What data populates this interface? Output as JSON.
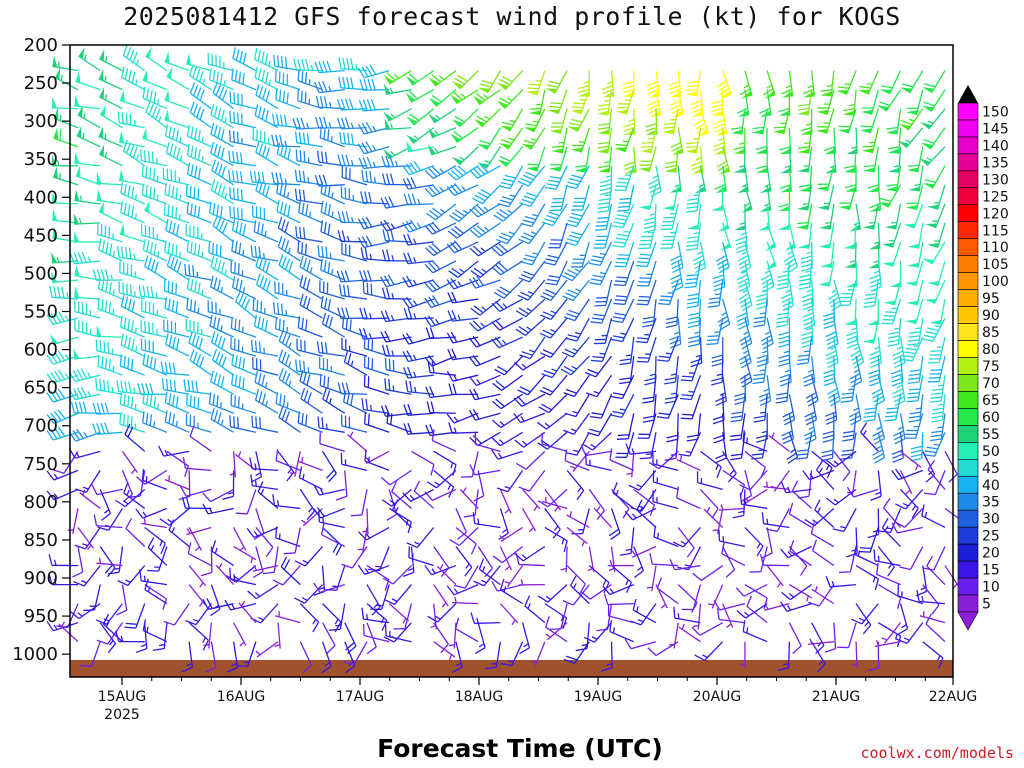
{
  "title": "2025081412 GFS forecast wind profile (kt) for KOGS",
  "xlabel": "Forecast Time (UTC)",
  "credit": "coolwx.com/models",
  "chart_data": {
    "type": "wind-barb-profile",
    "y_axis": {
      "levels": [
        200,
        250,
        300,
        350,
        400,
        450,
        500,
        550,
        600,
        650,
        700,
        750,
        800,
        850,
        900,
        950,
        1000
      ],
      "range": [
        200,
        1030
      ]
    },
    "x_axis": {
      "ticks": [
        "15AUG",
        "16AUG",
        "17AUG",
        "18AUG",
        "19AUG",
        "20AUG",
        "21AUG",
        "22AUG"
      ],
      "sublabel": "2025"
    },
    "colorbar": {
      "values": [
        5,
        10,
        15,
        20,
        25,
        30,
        35,
        40,
        45,
        50,
        55,
        60,
        65,
        70,
        75,
        80,
        85,
        90,
        95,
        100,
        105,
        110,
        115,
        120,
        125,
        130,
        135,
        140,
        145,
        150
      ],
      "colors": [
        "#8c1fd9",
        "#6a1ff0",
        "#3a14e8",
        "#1e1ed8",
        "#1e3ad8",
        "#1f5fe0",
        "#1f8ae8",
        "#15b4f0",
        "#22ddd2",
        "#22f0b4",
        "#1fd27a",
        "#22e84a",
        "#40e81a",
        "#7ce81a",
        "#b4f00f",
        "#ffff00",
        "#ffe41a",
        "#ffc800",
        "#ffad00",
        "#ff9600",
        "#ff7d00",
        "#ff5a00",
        "#ff2a00",
        "#ff0000",
        "#f0003a",
        "#e60064",
        "#e60096",
        "#e600c8",
        "#f000f0",
        "#ff00ff"
      ]
    },
    "ground_color": "#a0522d"
  }
}
